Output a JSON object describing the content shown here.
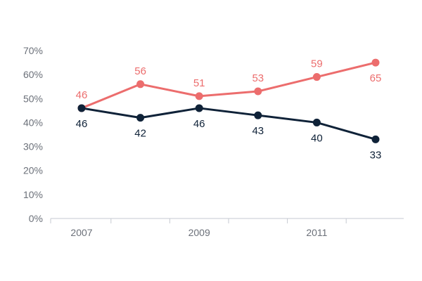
{
  "chart_data": {
    "type": "line",
    "title": "",
    "xlabel": "",
    "ylabel": "",
    "x": [
      2007,
      2008,
      2009,
      2010,
      2011,
      2012
    ],
    "x_tick_labels": [
      "2007",
      "",
      "2009",
      "",
      "2011",
      ""
    ],
    "y_ticks": [
      0,
      10,
      20,
      30,
      40,
      50,
      60,
      70
    ],
    "y_tick_labels": [
      "0%",
      "10%",
      "20%",
      "30%",
      "40%",
      "50%",
      "60%",
      "70%"
    ],
    "ylim": [
      0,
      70
    ],
    "grid": false,
    "series": [
      {
        "name": "series-red",
        "color": "#ec6d6d",
        "values": [
          46,
          56,
          51,
          53,
          59,
          65
        ],
        "labels": [
          "46",
          "56",
          "51",
          "53",
          "59",
          "65"
        ]
      },
      {
        "name": "series-navy",
        "color": "#0f2238",
        "values": [
          46,
          42,
          46,
          43,
          40,
          33
        ],
        "labels": [
          "46",
          "42",
          "46",
          "43",
          "40",
          "33"
        ]
      }
    ]
  },
  "colors": {
    "axis": "#c6cad1",
    "tick_text": "#6b7079"
  }
}
